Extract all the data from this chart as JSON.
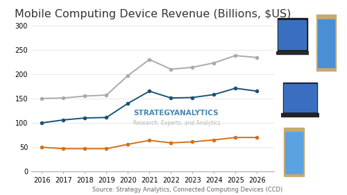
{
  "title": "Mobile Computing Device Revenue (Billions, $US)",
  "source": "Source: Strategy Analytics, Connected Computing Devices (CCD)",
  "watermark_line1": "STRATEGYANALYTICS",
  "watermark_line2": "Research, Experts, and Analytics",
  "years": [
    2016,
    2017,
    2018,
    2019,
    2020,
    2021,
    2022,
    2023,
    2024,
    2025,
    2026
  ],
  "notebook": [
    150,
    151,
    155,
    157,
    197,
    230,
    210,
    214,
    223,
    238,
    234
  ],
  "laptop": [
    100,
    106,
    110,
    111,
    140,
    165,
    151,
    152,
    158,
    171,
    165
  ],
  "tablet": [
    50,
    47,
    47,
    47,
    56,
    64,
    59,
    61,
    65,
    70,
    70
  ],
  "notebook_color": "#aaaaaa",
  "laptop_color": "#1a5276",
  "tablet_color": "#d4711a",
  "ylim": [
    0,
    300
  ],
  "yticks": [
    0,
    50,
    100,
    150,
    200,
    250,
    300
  ],
  "title_fontsize": 11.5,
  "bg_color": "#ffffff",
  "watermark_color_title": "#2471a3",
  "watermark_color_sub": "#aaaaaa",
  "grid_color": "#dddddd",
  "tick_fontsize": 7,
  "source_fontsize": 6,
  "watermark_fontsize_title": 7.5,
  "watermark_fontsize_sub": 5.5
}
